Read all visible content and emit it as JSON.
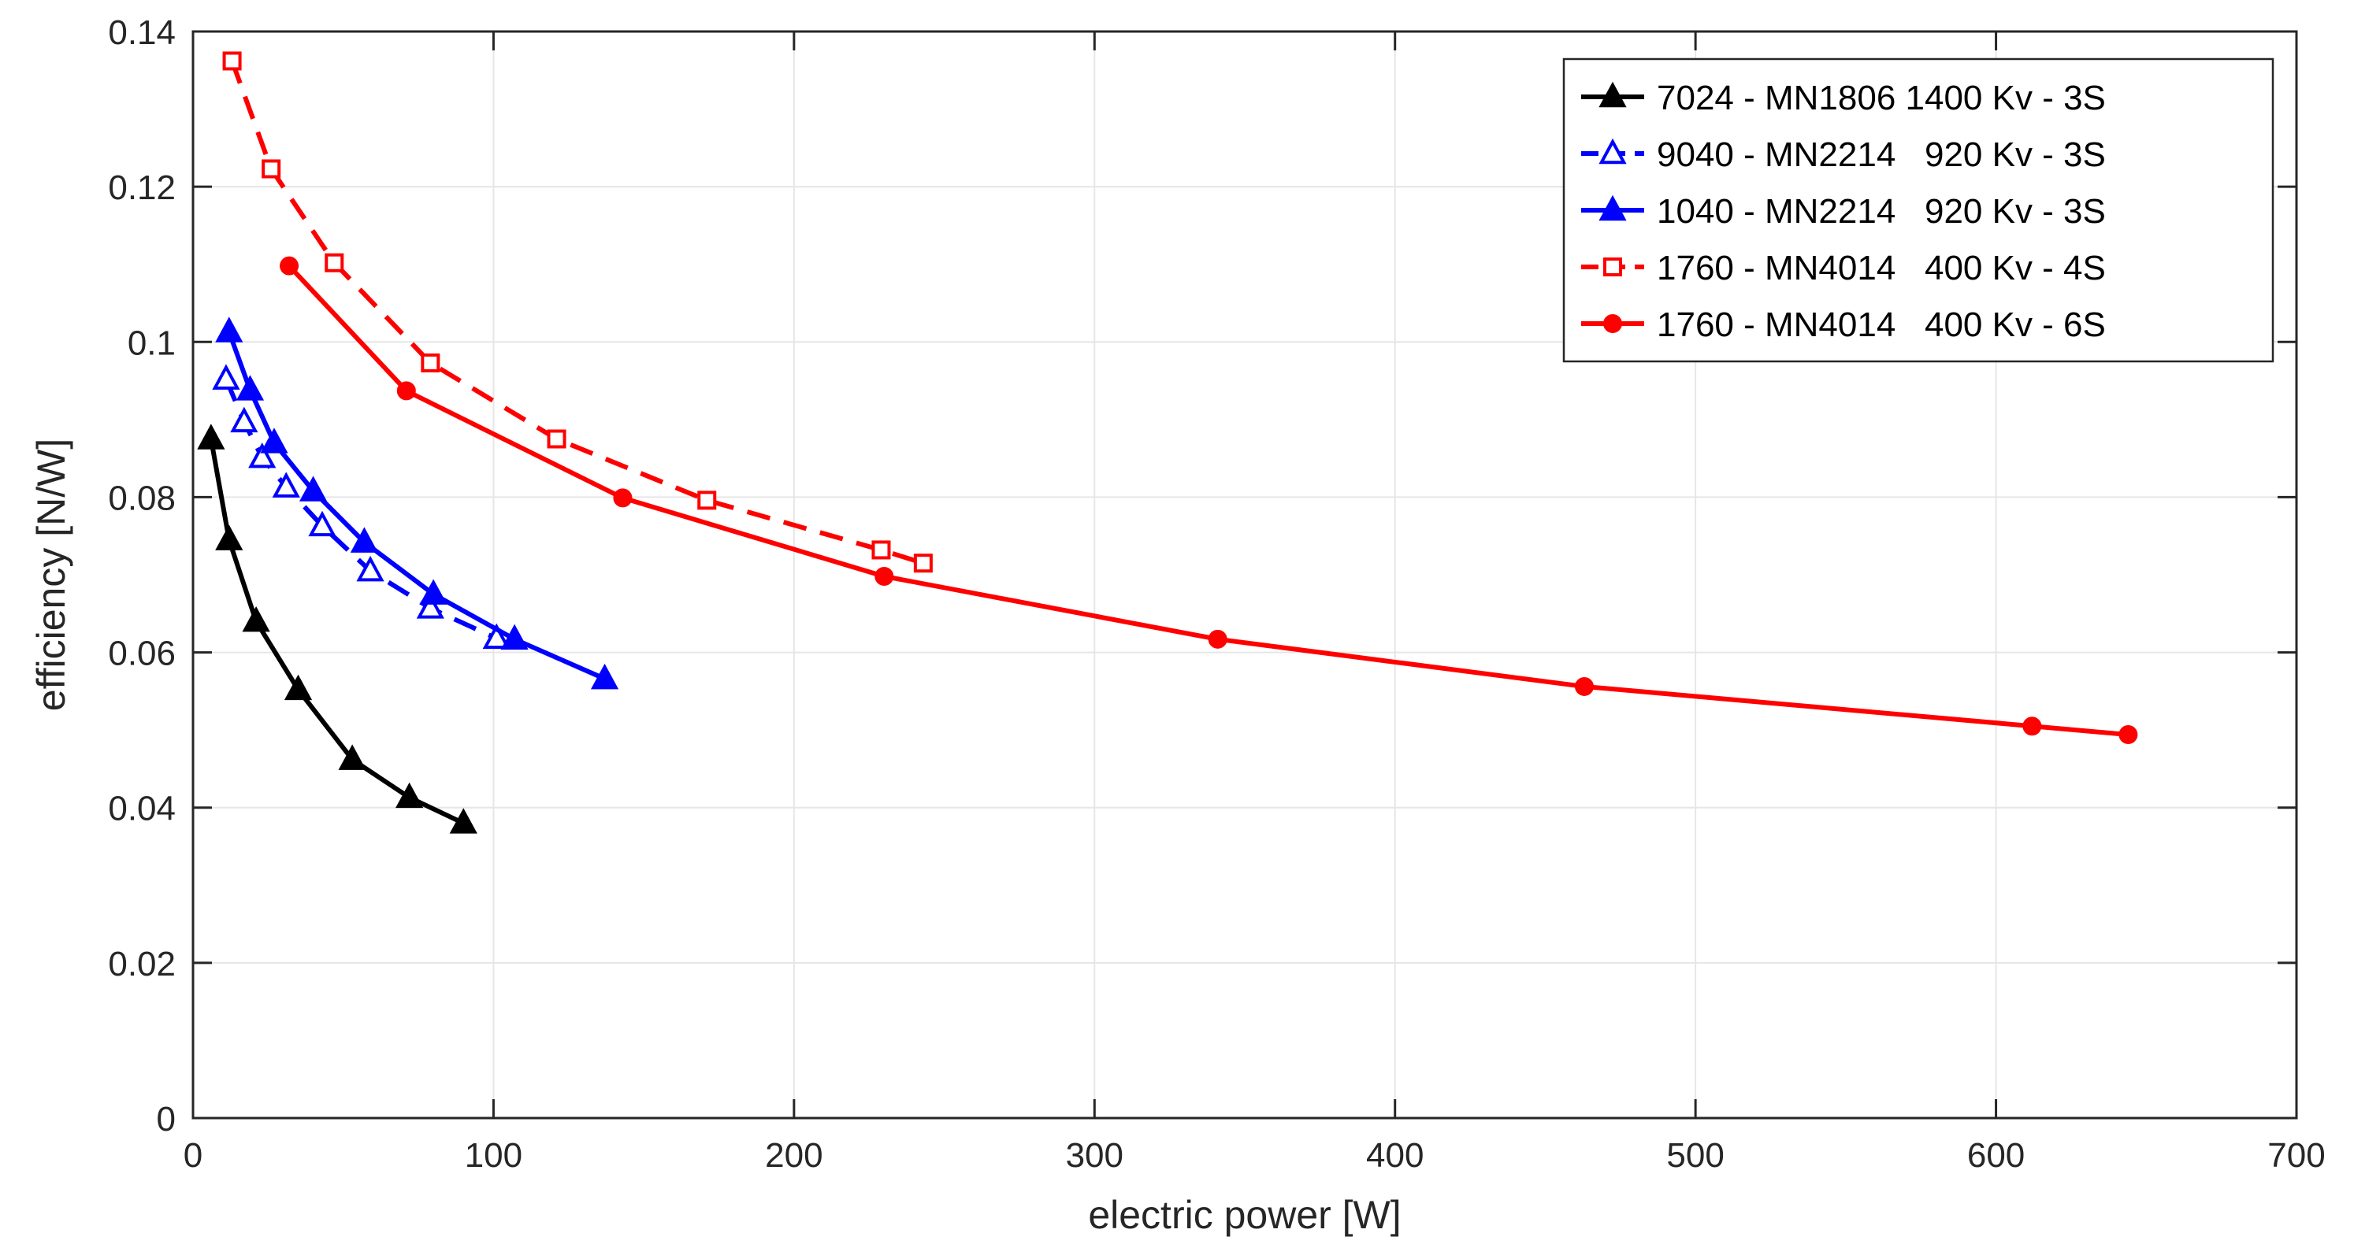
{
  "chart_data": {
    "type": "line",
    "title": "",
    "xlabel": "electric  power [W]",
    "ylabel": "efficiency [N/W]",
    "xlim": [
      0,
      700
    ],
    "ylim": [
      0,
      0.14
    ],
    "xticks": [
      0,
      100,
      200,
      300,
      400,
      500,
      600,
      700
    ],
    "yticks": [
      0,
      0.02,
      0.04,
      0.06,
      0.08,
      0.1,
      0.12,
      0.14
    ],
    "xtick_labels": [
      "0",
      "100",
      "200",
      "300",
      "400",
      "500",
      "600",
      "700"
    ],
    "ytick_labels": [
      "0",
      "0.02",
      "0.04",
      "0.06",
      "0.08",
      "0.1",
      "0.12",
      "0.14"
    ],
    "grid": true,
    "legend_position": "top-right",
    "series": [
      {
        "name": "7024 - MN1806 1400 Kv - 3S",
        "color": "#000000",
        "dash": "solid",
        "marker": "triangle-filled",
        "x": [
          6,
          12,
          21,
          35,
          53,
          72,
          90
        ],
        "y": [
          0.0875,
          0.0745,
          0.064,
          0.0552,
          0.0462,
          0.0413,
          0.038
        ]
      },
      {
        "name": "9040 - MN2214   920 Kv - 3S",
        "color": "#0000ff",
        "dash": "dashed",
        "marker": "triangle-open",
        "x": [
          11,
          17,
          23,
          31,
          43,
          59,
          79,
          101
        ],
        "y": [
          0.0952,
          0.0897,
          0.0851,
          0.0813,
          0.0763,
          0.0705,
          0.0657,
          0.0618
        ]
      },
      {
        "name": "1040 - MN2214   920 Kv - 3S",
        "color": "#0000ff",
        "dash": "solid",
        "marker": "triangle-filled",
        "x": [
          12,
          19,
          27,
          40,
          57,
          80,
          107,
          137
        ],
        "y": [
          0.1013,
          0.0938,
          0.087,
          0.0808,
          0.0742,
          0.0675,
          0.0617,
          0.0566
        ]
      },
      {
        "name": "1760 - MN4014   400 Kv - 4S",
        "color": "#ff0000",
        "dash": "dashed",
        "marker": "square-open",
        "x": [
          13,
          26,
          47,
          79,
          121,
          171,
          229,
          243
        ],
        "y": [
          0.1362,
          0.1223,
          0.1102,
          0.0973,
          0.0875,
          0.0796,
          0.0732,
          0.0715
        ]
      },
      {
        "name": "1760 - MN4014   400 Kv - 6S",
        "color": "#ff0000",
        "dash": "solid",
        "marker": "circle-filled",
        "x": [
          32,
          71,
          143,
          230,
          341,
          463,
          612,
          644
        ],
        "y": [
          0.1098,
          0.0937,
          0.0799,
          0.0698,
          0.0617,
          0.0556,
          0.0505,
          0.0494
        ]
      }
    ]
  }
}
